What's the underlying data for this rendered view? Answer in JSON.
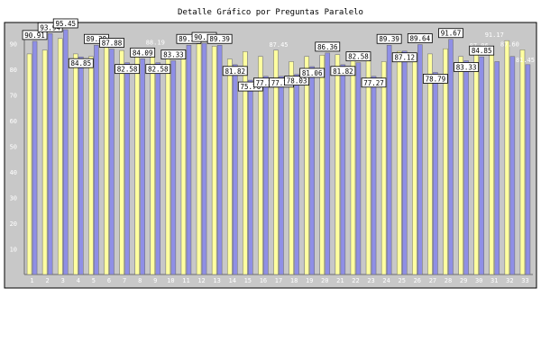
{
  "chart_data": {
    "type": "bar",
    "title": "Detalle Gráfico por Preguntas Paralelo",
    "categories": [
      "1",
      "2",
      "3",
      "4",
      "5",
      "6",
      "7",
      "8",
      "9",
      "10",
      "11",
      "12",
      "13",
      "14",
      "15",
      "16",
      "17",
      "18",
      "19",
      "20",
      "21",
      "22",
      "23",
      "24",
      "25",
      "26",
      "27",
      "28",
      "29",
      "30",
      "31",
      "32",
      "33"
    ],
    "series": [
      {
        "color": "#ffffa0",
        "values": [
          86.0,
          87.5,
          92.0,
          86.0,
          85.0,
          88.7,
          87.33,
          86.5,
          88.19,
          85.7,
          87.35,
          89.9,
          89.0,
          84.0,
          86.91,
          85.0,
          87.45,
          83.0,
          85.0,
          85.5,
          85.71,
          86.0,
          86.0,
          83.0,
          87.0,
          85.85,
          86.0,
          88.0,
          85.0,
          87.06,
          86.0,
          91.17,
          87.6
        ]
      },
      {
        "color": "#8f8fe6",
        "values": [
          90.91,
          93.94,
          95.45,
          84.85,
          89.39,
          87.88,
          82.58,
          84.09,
          82.58,
          83.33,
          89.39,
          90.15,
          89.39,
          81.82,
          75.76,
          77.27,
          77.27,
          78.03,
          81.06,
          86.36,
          81.82,
          82.58,
          77.27,
          89.39,
          87.12,
          89.64,
          78.79,
          91.67,
          83.33,
          84.85,
          83.0,
          85.0,
          81.82
        ]
      }
    ],
    "ylim": [
      0,
      100
    ],
    "yticks": [
      "10",
      "20",
      "30",
      "40",
      "50",
      "60",
      "70",
      "80",
      "90"
    ],
    "grid": false,
    "data_labels": [
      "90.91",
      "93.94",
      "95.45",
      "84.85",
      "89.39",
      "87.88",
      "82.58",
      "84.09",
      "82.58",
      "83.33",
      "89.39",
      "90.15",
      "89.39",
      "81.82",
      "75.76",
      "77.27",
      "77.27",
      "78.03",
      "81.06",
      "86.36",
      "81.82",
      "82.58",
      "77.27",
      "89.39",
      "87.12",
      "89.64",
      "78.79",
      "91.67",
      "83.33",
      "84.85"
    ],
    "faint_labels": [
      "88.19",
      "87.45",
      "87.06",
      "91.17",
      "87.60",
      "81.45"
    ],
    "colors": {
      "panel": "#c8c8c8",
      "frame": "#6c6c6c",
      "label_bg": "#ffffff"
    }
  }
}
